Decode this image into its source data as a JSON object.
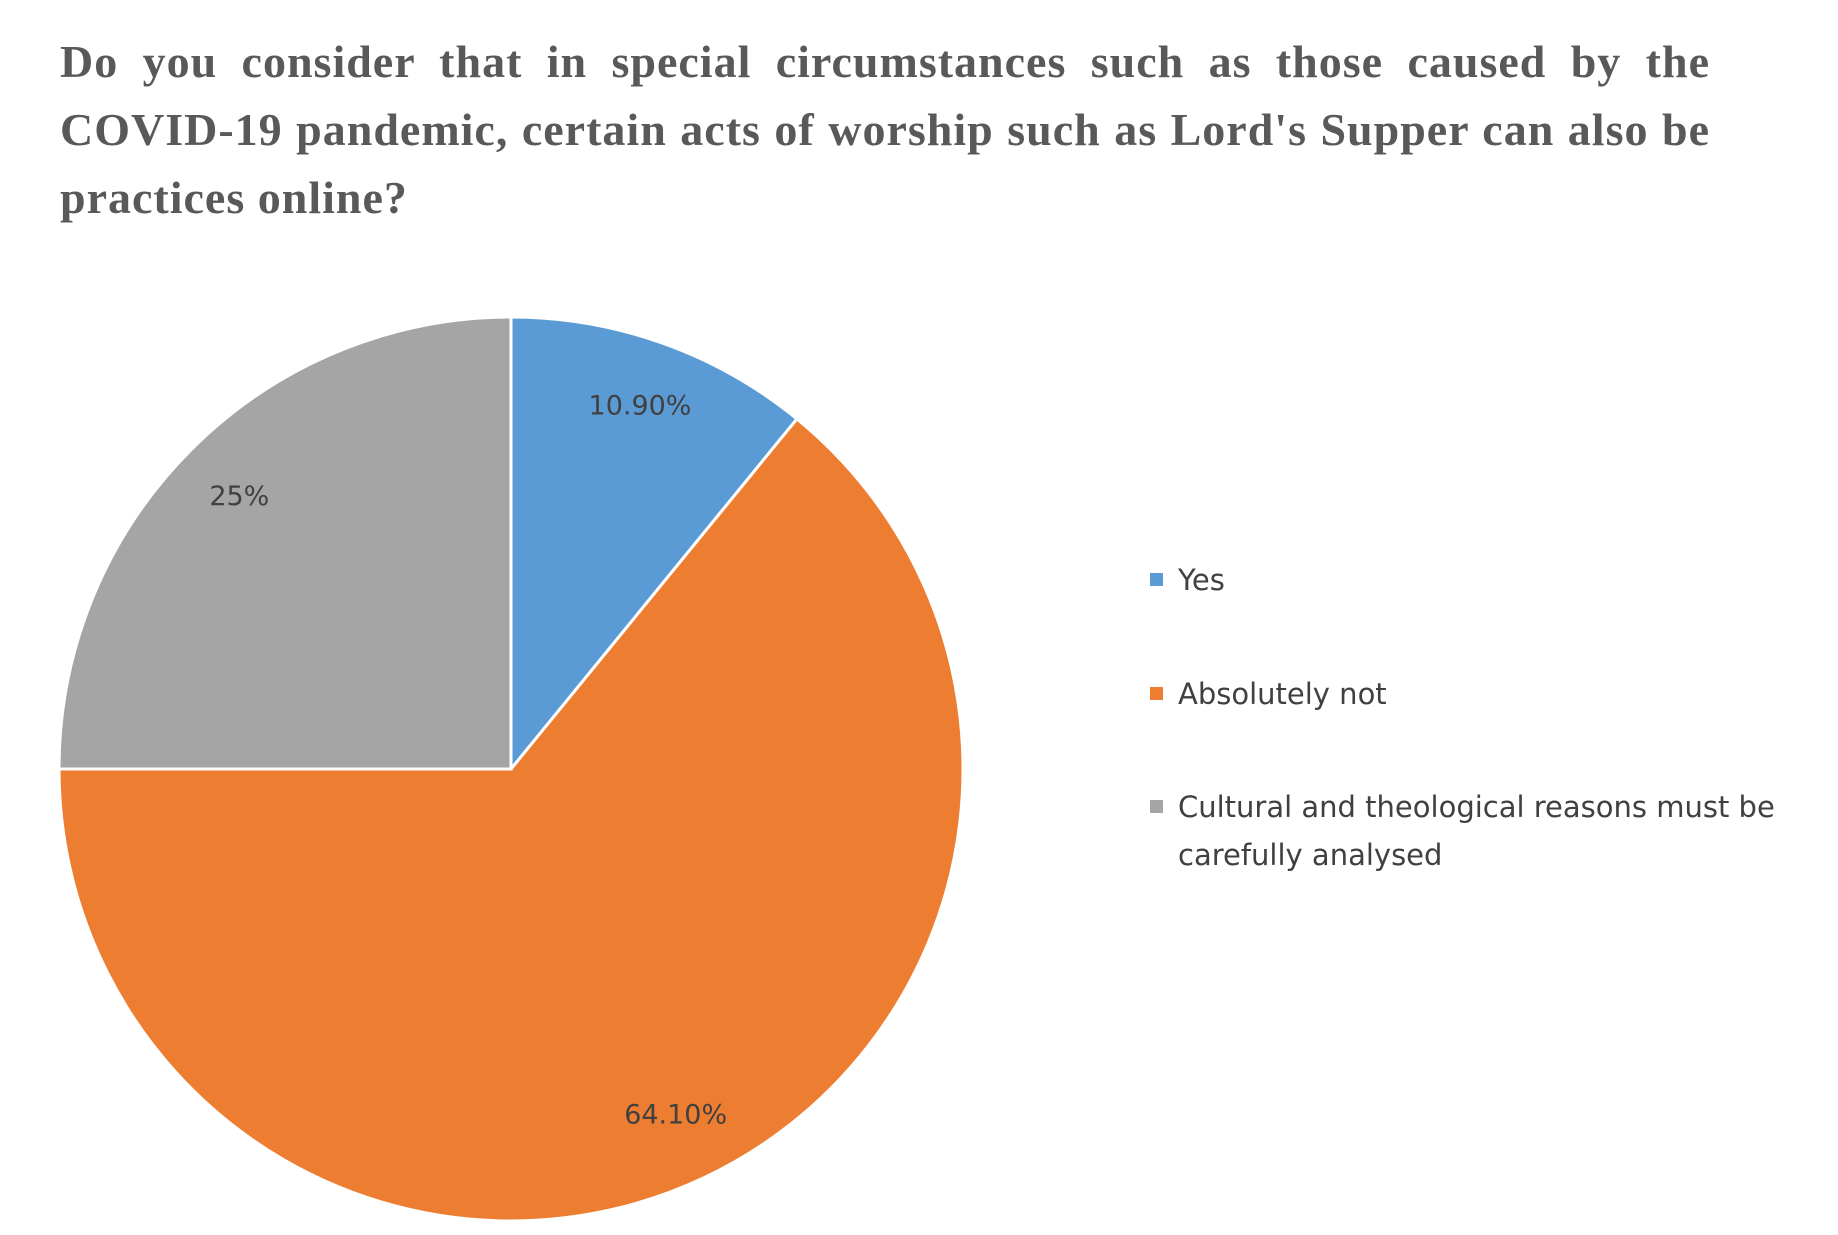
{
  "chart_data": {
    "type": "pie",
    "title": "Do you consider that in special circumstances such as those caused by the COVID-19 pandemic, certain acts of worship such as Lord's Supper can also be practices online?",
    "categories": [
      "Yes",
      "Absolutely not",
      "Cultural and theological reasons must be carefully analysed"
    ],
    "values": [
      10.9,
      64.1,
      25
    ],
    "value_labels": [
      "10.90%",
      "64.10%",
      "25%"
    ],
    "colors": [
      "#5b9bd5",
      "#ed7d31",
      "#a5a5a5"
    ],
    "legend": "right"
  }
}
